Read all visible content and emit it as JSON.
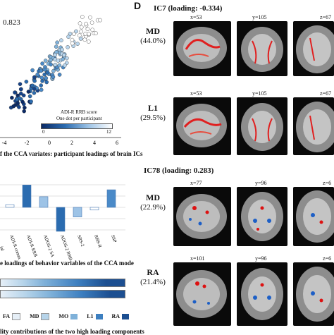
{
  "left": {
    "scatter": {
      "r_label": "0.823",
      "x_ticks": [
        "-4",
        "-2",
        "0",
        "2",
        "4",
        "6"
      ],
      "caption": "f the CCA variates: participant loadings of brain ICs",
      "colorbar_title": "ADI-R RRB score",
      "colorbar_subtitle": "One dot per participant",
      "colorbar_min": "0",
      "colorbar_max": "12"
    },
    "chart_data": {
      "type": "bar",
      "categories": [
        "ADI-R comm.",
        "ADI-R RRB",
        "ADOS-2 SA",
        "ADOS-2 RRB",
        "SRS-2",
        "RBS-R",
        "SSP"
      ],
      "values": [
        0.05,
        0.42,
        0.2,
        -0.45,
        -0.18,
        -0.05,
        0.33
      ],
      "ylim": [
        -0.6,
        0.6
      ],
      "partial_first_label": "ial",
      "caption": "e loadings of behavior variables of the CCA mode"
    },
    "stacked": {
      "legend": [
        {
          "label": "FA",
          "color": "#e6eff7"
        },
        {
          "label": "MD",
          "color": "#b6d4ea"
        },
        {
          "label": "MO",
          "color": "#7fb1d9"
        },
        {
          "label": "L1",
          "color": "#3d7fc0"
        },
        {
          "label": "RA",
          "color": "#1c4f91"
        }
      ],
      "caption": "lity contributions of the two high loading components"
    }
  },
  "right": {
    "panel_letter": "D",
    "ic7": {
      "title": "IC7 (loading: -0.334)",
      "rows": [
        {
          "name": "MD",
          "pct": "(44.0%)",
          "coords": [
            "x=53",
            "y=105",
            "z=67"
          ]
        },
        {
          "name": "L1",
          "pct": "(29.5%)",
          "coords": [
            "x=53",
            "y=105",
            "z=67"
          ]
        }
      ]
    },
    "ic78": {
      "title": "IC78 (loading: 0.283)",
      "rows": [
        {
          "name": "MD",
          "pct": "(22.9%)",
          "coords": [
            "x=77",
            "y=96",
            "z=6"
          ]
        },
        {
          "name": "RA",
          "pct": "(21.4%)",
          "coords": [
            "x=101",
            "y=96",
            "z=6"
          ]
        }
      ]
    }
  }
}
